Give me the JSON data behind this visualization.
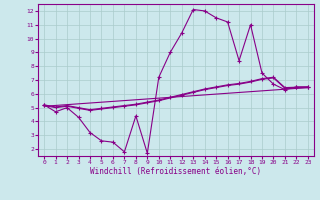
{
  "xlabel": "Windchill (Refroidissement éolien,°C)",
  "xlim": [
    -0.5,
    23.5
  ],
  "ylim": [
    1.5,
    12.5
  ],
  "yticks": [
    2,
    3,
    4,
    5,
    6,
    7,
    8,
    9,
    10,
    11,
    12
  ],
  "xticks": [
    0,
    1,
    2,
    3,
    4,
    5,
    6,
    7,
    8,
    9,
    10,
    11,
    12,
    13,
    14,
    15,
    16,
    17,
    18,
    19,
    20,
    21,
    22,
    23
  ],
  "bg_color": "#cce8ec",
  "grid_color": "#aacccc",
  "line_color": "#880088",
  "line_width": 0.8,
  "marker": "+",
  "marker_size": 3,
  "curves": [
    {
      "x": [
        0,
        1,
        2,
        3,
        4,
        5,
        6,
        7,
        8,
        9,
        10,
        11,
        12,
        13,
        14,
        15,
        16,
        17,
        18,
        19,
        20,
        21,
        22,
        23
      ],
      "y": [
        5.2,
        4.7,
        5.0,
        4.3,
        3.2,
        2.6,
        2.5,
        1.8,
        4.4,
        1.7,
        7.2,
        9.0,
        10.4,
        12.1,
        12.0,
        11.5,
        11.2,
        8.4,
        11.0,
        7.5,
        6.7,
        6.3,
        6.5,
        6.5
      ],
      "has_markers": true
    },
    {
      "x": [
        0,
        1,
        2,
        3,
        4,
        5,
        6,
        7,
        8,
        9,
        10,
        11,
        12,
        13,
        14,
        15,
        16,
        17,
        18,
        19,
        20,
        21,
        22,
        23
      ],
      "y": [
        5.2,
        5.05,
        5.15,
        5.0,
        4.85,
        4.95,
        5.05,
        5.15,
        5.25,
        5.4,
        5.55,
        5.75,
        5.95,
        6.15,
        6.35,
        6.5,
        6.65,
        6.75,
        6.9,
        7.1,
        7.2,
        6.45,
        6.48,
        6.5
      ],
      "has_markers": true
    },
    {
      "x": [
        0,
        1,
        2,
        3,
        4,
        5,
        6,
        7,
        8,
        9,
        10,
        11,
        12,
        13,
        14,
        15,
        16,
        17,
        18,
        19,
        20,
        21,
        22,
        23
      ],
      "y": [
        5.15,
        5.0,
        5.1,
        4.95,
        4.8,
        4.9,
        5.0,
        5.1,
        5.2,
        5.35,
        5.5,
        5.7,
        5.9,
        6.1,
        6.3,
        6.45,
        6.6,
        6.7,
        6.85,
        7.05,
        7.15,
        6.4,
        6.43,
        6.45
      ],
      "has_markers": false
    },
    {
      "x": [
        0,
        23
      ],
      "y": [
        5.1,
        6.45
      ],
      "has_markers": false
    }
  ]
}
